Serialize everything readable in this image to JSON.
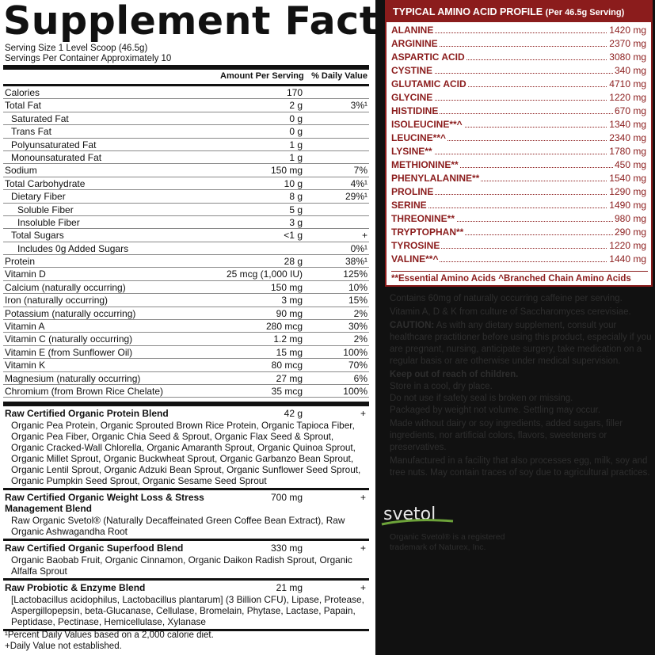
{
  "facts": {
    "title": "Supplement Facts",
    "serving_size": "Serving Size 1 Level Scoop (46.5g)",
    "servings_per_container": "Servings Per Container Approximately 10",
    "header_amount": "Amount Per Serving",
    "header_dv": "% Daily Value",
    "rows": [
      {
        "name": "Calories",
        "amount": "170",
        "dv": "",
        "indent": 0
      },
      {
        "name": "Total Fat",
        "amount": "2 g",
        "dv": "3%¹",
        "indent": 0
      },
      {
        "name": "Saturated Fat",
        "amount": "0 g",
        "dv": "",
        "indent": 1
      },
      {
        "name": "Trans Fat",
        "amount": "0 g",
        "dv": "",
        "indent": 1
      },
      {
        "name": "Polyunsaturated Fat",
        "amount": "1 g",
        "dv": "",
        "indent": 1
      },
      {
        "name": "Monounsaturated Fat",
        "amount": "1 g",
        "dv": "",
        "indent": 1
      },
      {
        "name": "Sodium",
        "amount": "150 mg",
        "dv": "7%",
        "indent": 0
      },
      {
        "name": "Total Carbohydrate",
        "amount": "10 g",
        "dv": "4%¹",
        "indent": 0
      },
      {
        "name": "Dietary Fiber",
        "amount": "8 g",
        "dv": "29%¹",
        "indent": 1
      },
      {
        "name": "Soluble Fiber",
        "amount": "5 g",
        "dv": "",
        "indent": 2
      },
      {
        "name": "Insoluble Fiber",
        "amount": "3 g",
        "dv": "",
        "indent": 2
      },
      {
        "name": "Total Sugars",
        "amount": "<1 g",
        "dv": "+",
        "indent": 1
      },
      {
        "name": "Includes 0g Added Sugars",
        "amount": "",
        "dv": "0%¹",
        "indent": 2
      },
      {
        "name": "Protein",
        "amount": "28 g",
        "dv": "38%¹",
        "indent": 0
      },
      {
        "name": "Vitamin D",
        "amount": "25 mcg (1,000 IU)",
        "dv": "125%",
        "indent": 0
      },
      {
        "name": "Calcium (naturally occurring)",
        "amount": "150 mg",
        "dv": "10%",
        "indent": 0
      },
      {
        "name": "Iron (naturally occurring)",
        "amount": "3 mg",
        "dv": "15%",
        "indent": 0
      },
      {
        "name": "Potassium (naturally occurring)",
        "amount": "90 mg",
        "dv": "2%",
        "indent": 0
      },
      {
        "name": "Vitamin A",
        "amount": "280 mcg",
        "dv": "30%",
        "indent": 0
      },
      {
        "name": "Vitamin C (naturally occurring)",
        "amount": "1.2 mg",
        "dv": "2%",
        "indent": 0
      },
      {
        "name": "Vitamin E (from Sunflower Oil)",
        "amount": "15 mg",
        "dv": "100%",
        "indent": 0
      },
      {
        "name": "Vitamin K",
        "amount": "80 mcg",
        "dv": "70%",
        "indent": 0
      },
      {
        "name": "Magnesium (naturally occurring)",
        "amount": "27 mg",
        "dv": "6%",
        "indent": 0
      },
      {
        "name": "Chromium (from Brown Rice Chelate)",
        "amount": "35 mcg",
        "dv": "100%",
        "indent": 0
      }
    ],
    "blends": [
      {
        "name": "Raw Certified Organic Protein Blend",
        "amount": "42 g",
        "dv": "+",
        "ingredients": "Organic Pea Protein, Organic Sprouted Brown Rice Protein, Organic Tapioca Fiber, Organic Pea Fiber, Organic Chia Seed & Sprout, Organic Flax Seed & Sprout, Organic Cracked-Wall Chlorella, Organic Amaranth Sprout, Organic Quinoa Sprout, Organic Millet Sprout, Organic Buckwheat Sprout, Organic Garbanzo Bean Sprout, Organic Lentil Sprout, Organic Adzuki Bean Sprout, Organic Sunflower Seed Sprout, Organic Pumpkin Seed Sprout, Organic Sesame Seed Sprout"
      },
      {
        "name": "Raw Certified Organic Weight Loss & Stress Management Blend",
        "amount": "700 mg",
        "dv": "+",
        "ingredients": "Raw Organic Svetol® (Naturally Decaffeinated Green Coffee Bean Extract), Raw Organic Ashwagandha Root"
      },
      {
        "name": "Raw Certified Organic Superfood Blend",
        "amount": "330 mg",
        "dv": "+",
        "ingredients": "Organic Baobab Fruit, Organic Cinnamon, Organic Daikon Radish Sprout, Organic Alfalfa Sprout"
      },
      {
        "name": "Raw Probiotic & Enzyme Blend",
        "amount": "21 mg",
        "dv": "+",
        "ingredients": "[Lactobacillus acidophilus, Lactobacillus plantarum] (3 Billion CFU), Lipase, Protease, Aspergillopepsin, beta-Glucanase, Cellulase, Bromelain, Phytase, Lactase, Papain, Peptidase, Pectinase, Hemicellulase, Xylanase"
      }
    ],
    "footnote_1": "¹Percent Daily Values based on a 2,000 calorie diet.",
    "footnote_2": "+Daily Value not established."
  },
  "amino": {
    "title": "TYPICAL AMINO ACID PROFILE",
    "per": "(Per 46.5g Serving)",
    "rows": [
      {
        "name": "ALANINE",
        "value": "1420 mg"
      },
      {
        "name": "ARGININE",
        "value": "2370 mg"
      },
      {
        "name": "ASPARTIC ACID",
        "value": "3080 mg"
      },
      {
        "name": "CYSTINE",
        "value": "340 mg"
      },
      {
        "name": "GLUTAMIC ACID",
        "value": "4710 mg"
      },
      {
        "name": "GLYCINE",
        "value": "1220 mg"
      },
      {
        "name": "HISTIDINE",
        "value": "670 mg"
      },
      {
        "name": "ISOLEUCINE**^",
        "value": "1340 mg"
      },
      {
        "name": "LEUCINE**^",
        "value": "2340 mg"
      },
      {
        "name": "LYSINE**",
        "value": "1780 mg"
      },
      {
        "name": "METHIONINE**",
        "value": "450 mg"
      },
      {
        "name": "PHENYLALANINE**",
        "value": "1540 mg"
      },
      {
        "name": "PROLINE",
        "value": "1290 mg"
      },
      {
        "name": "SERINE",
        "value": "1490 mg"
      },
      {
        "name": "THREONINE**",
        "value": "980 mg"
      },
      {
        "name": "TRYPTOPHAN**",
        "value": "290 mg"
      },
      {
        "name": "TYROSINE",
        "value": "1220 mg"
      },
      {
        "name": "VALINE**^",
        "value": "1440 mg"
      }
    ],
    "footnote": "**Essential Amino Acids   ^Branched Chain Amino Acids"
  },
  "dark_text": {
    "caffeine": "Contains 60mg of naturally occurring caffeine per serving.",
    "vitamins": "Vitamin A, D & K from culture of Saccharomyces cerevisiae.",
    "caution_label": "CAUTION:",
    "caution": "As with any dietary supplement, consult your healthcare practitioner before using this product, especially if you are pregnant, nursing, anticipate surgery, take medication on a regular basis or are otherwise under medical supervision.",
    "keep_out": "Keep out of reach of children.",
    "store": "Store in a cool, dry place.",
    "seal": "Do not use if safety seal is broken or missing.",
    "packaged": "Packaged by weight not volume. Settling may occur.",
    "made_without": "Made without dairy or soy ingredients, added sugars, filler ingredients, nor artificial colors, flavors, sweeteners or preservatives.",
    "manufactured": "Manufactured in a facility that also processes egg, milk, soy and tree nuts. May contain traces of soy due to agricultural practices.",
    "svetol_logo": "svetol",
    "svetol_note": "Organic Svetol® is a registered trademark of Naturex, Inc."
  },
  "colors": {
    "brand_red": "#8b1c1c",
    "dark_bg": "#111111",
    "dim_text": "#2e2e2e"
  }
}
